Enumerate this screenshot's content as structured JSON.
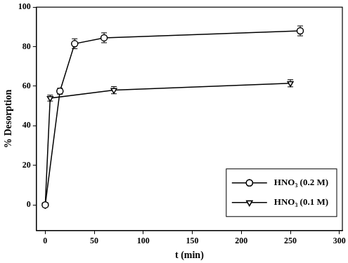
{
  "chart_data": {
    "type": "line",
    "x_label": "t (min)",
    "y_label": "% Desorption",
    "xlim": [
      -9,
      303
    ],
    "xticks": [
      0,
      50,
      100,
      150,
      200,
      250,
      300
    ],
    "ylim": [
      -13,
      100
    ],
    "yticks": [
      0,
      20,
      40,
      60,
      80,
      100
    ],
    "grid": false,
    "legend": "lower right",
    "series": [
      {
        "name": "HNO₃ (0.2 M)",
        "color": "#000000",
        "marker": "circle",
        "line_style": "solid",
        "x": [
          0,
          15,
          30,
          60,
          260
        ],
        "values": [
          0,
          57.5,
          81.5,
          84.5,
          88
        ],
        "errors": [
          1,
          1.5,
          2.5,
          2.5,
          2.5
        ]
      },
      {
        "name": "HNO₃ (0.1 M)",
        "color": "#000000",
        "marker": "triangle-down",
        "line_style": "solid",
        "x": [
          0,
          5,
          70,
          250
        ],
        "values": [
          0,
          54,
          58,
          61.5
        ],
        "errors": [
          1,
          1.5,
          1.8,
          1.8
        ]
      }
    ]
  }
}
